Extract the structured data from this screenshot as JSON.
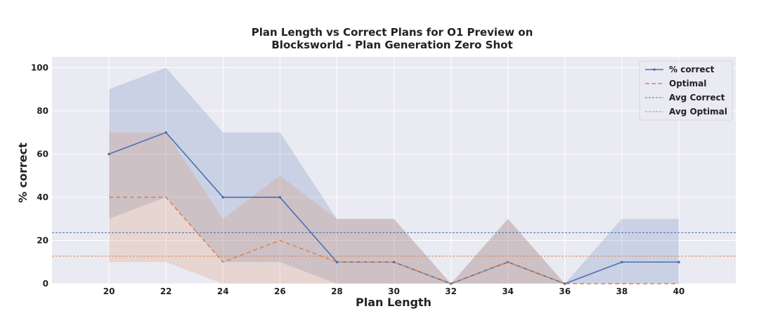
{
  "chart_data": {
    "type": "line",
    "title_lines": [
      "Plan Length vs Correct Plans for O1 Preview on",
      "Blocksworld - Plan Generation Zero Shot"
    ],
    "xlabel": "Plan Length",
    "ylabel": "% correct",
    "x": [
      20,
      22,
      24,
      26,
      28,
      30,
      32,
      34,
      36,
      38,
      40
    ],
    "xlim": [
      18,
      42
    ],
    "ylim": [
      0,
      105
    ],
    "yticks": [
      0,
      20,
      40,
      60,
      80,
      100
    ],
    "grid": true,
    "legend_position": "top-right",
    "series": [
      {
        "name": "% correct",
        "color": "#4c6faf",
        "style": "solid-marker",
        "values": [
          60,
          70,
          40,
          40,
          10,
          10,
          0,
          10,
          0,
          10,
          10
        ],
        "band_lower": [
          30,
          40,
          10,
          10,
          0,
          0,
          0,
          0,
          0,
          0,
          0
        ],
        "band_upper": [
          90,
          100,
          70,
          70,
          30,
          30,
          0,
          30,
          0,
          30,
          30
        ]
      },
      {
        "name": "Optimal",
        "color": "#dd8452",
        "style": "dashed",
        "values": [
          40,
          40,
          10,
          20,
          10,
          10,
          0,
          10,
          0,
          0,
          0
        ],
        "band_lower": [
          10,
          10,
          0,
          0,
          0,
          0,
          0,
          0,
          0,
          0,
          0
        ],
        "band_upper": [
          70,
          70,
          30,
          50,
          30,
          30,
          0,
          30,
          0,
          0,
          0
        ]
      }
    ],
    "reference_lines": [
      {
        "name": "Avg Correct",
        "value": 23.6,
        "color": "#4c6faf",
        "style": "dotted"
      },
      {
        "name": "Avg Optimal",
        "value": 12.7,
        "color": "#dd8452",
        "style": "dotted"
      }
    ],
    "colors": {
      "plot_background": "#eaeaf2",
      "grid": "#ffffff"
    }
  }
}
